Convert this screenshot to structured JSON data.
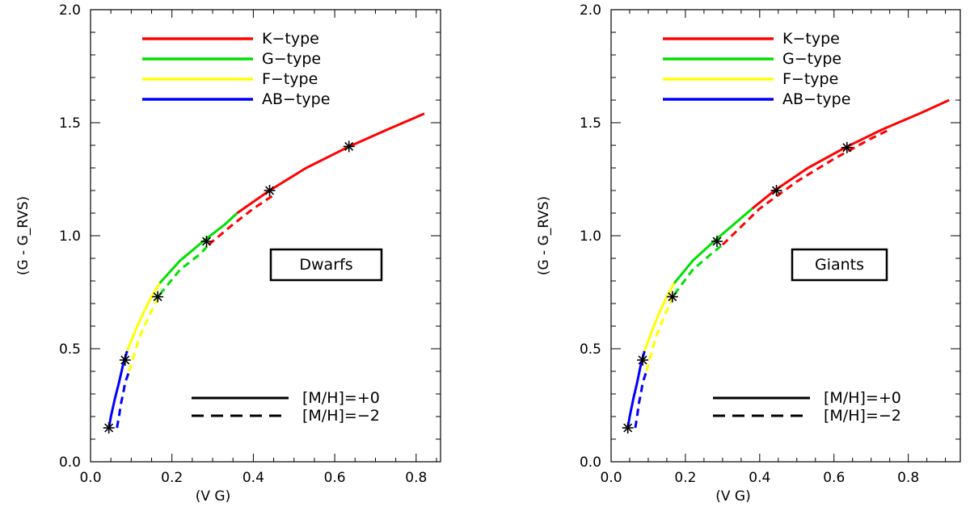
{
  "chart_data": [
    {
      "type": "line",
      "xlabel": "(V    G)",
      "ylabel": "(G - G_RVS)",
      "xlim": [
        0.0,
        0.86
      ],
      "ylim": [
        0.0,
        2.0
      ],
      "xticks": [
        "0.0",
        "0.2",
        "0.4",
        "0.6",
        "0.8"
      ],
      "yticks": [
        "0.0",
        "0.5",
        "1.0",
        "1.5",
        "2.0"
      ],
      "xtick_values": [
        0.0,
        0.2,
        0.4,
        0.6,
        0.8
      ],
      "ytick_values": [
        0.0,
        0.5,
        1.0,
        1.5,
        2.0
      ],
      "annotation": "Dwarfs",
      "color_legend": [
        {
          "label": "K−type",
          "color": "#ff0000"
        },
        {
          "label": "G−type",
          "color": "#00e000"
        },
        {
          "label": "F−type",
          "color": "#ffff00"
        },
        {
          "label": "AB−type",
          "color": "#0000ff"
        }
      ],
      "style_legend": [
        {
          "label": "[M/H]=+0",
          "dash": "solid"
        },
        {
          "label": "[M/H]=−2",
          "dash": "dashed"
        }
      ],
      "series": [
        {
          "name": "[M/H]=+0",
          "dash": "solid",
          "segments": [
            {
              "color": "#0000ff",
              "x": [
                0.045,
                0.05,
                0.06,
                0.07,
                0.08,
                0.09
              ],
              "y": [
                0.15,
                0.2,
                0.28,
                0.35,
                0.43,
                0.49
              ]
            },
            {
              "color": "#ffff00",
              "x": [
                0.09,
                0.11,
                0.13,
                0.15,
                0.17
              ],
              "y": [
                0.49,
                0.58,
                0.66,
                0.73,
                0.79
              ]
            },
            {
              "color": "#00e000",
              "x": [
                0.17,
                0.22,
                0.28,
                0.33,
                0.36
              ],
              "y": [
                0.79,
                0.89,
                0.98,
                1.05,
                1.1
              ]
            },
            {
              "color": "#ff0000",
              "x": [
                0.36,
                0.44,
                0.53,
                0.63,
                0.73,
                0.82
              ],
              "y": [
                1.1,
                1.2,
                1.3,
                1.39,
                1.47,
                1.54
              ]
            }
          ]
        },
        {
          "name": "[M/H]=−2",
          "dash": "dashed",
          "segments": [
            {
              "color": "#0000ff",
              "x": [
                0.065,
                0.07,
                0.075,
                0.08,
                0.085,
                0.095
              ],
              "y": [
                0.15,
                0.2,
                0.26,
                0.3,
                0.35,
                0.4
              ]
            },
            {
              "color": "#ffff00",
              "x": [
                0.095,
                0.12,
                0.145,
                0.17
              ],
              "y": [
                0.4,
                0.55,
                0.65,
                0.74
              ]
            },
            {
              "color": "#00e000",
              "x": [
                0.17,
                0.22,
                0.27,
                0.29
              ],
              "y": [
                0.74,
                0.85,
                0.92,
                0.96
              ]
            },
            {
              "color": "#ff0000",
              "x": [
                0.29,
                0.35,
                0.4,
                0.45
              ],
              "y": [
                0.96,
                1.05,
                1.12,
                1.18
              ]
            }
          ]
        }
      ],
      "markers": {
        "x": [
          0.045,
          0.085,
          0.165,
          0.285,
          0.44,
          0.635
        ],
        "y": [
          0.15,
          0.45,
          0.73,
          0.975,
          1.2,
          1.395
        ]
      }
    },
    {
      "type": "line",
      "xlabel": "(V    G)",
      "ylabel": "(G - G_RVS)",
      "xlim": [
        0.0,
        0.94
      ],
      "ylim": [
        0.0,
        2.0
      ],
      "xticks": [
        "0.0",
        "0.2",
        "0.4",
        "0.6",
        "0.8"
      ],
      "yticks": [
        "0.0",
        "0.5",
        "1.0",
        "1.5",
        "2.0"
      ],
      "xtick_values": [
        0.0,
        0.2,
        0.4,
        0.6,
        0.8
      ],
      "ytick_values": [
        0.0,
        0.5,
        1.0,
        1.5,
        2.0
      ],
      "annotation": "Giants",
      "color_legend": [
        {
          "label": "K−type",
          "color": "#ff0000"
        },
        {
          "label": "G−type",
          "color": "#00e000"
        },
        {
          "label": "F−type",
          "color": "#ffff00"
        },
        {
          "label": "AB−type",
          "color": "#0000ff"
        }
      ],
      "style_legend": [
        {
          "label": "[M/H]=+0",
          "dash": "solid"
        },
        {
          "label": "[M/H]=−2",
          "dash": "dashed"
        }
      ],
      "series": [
        {
          "name": "[M/H]=+0",
          "dash": "solid",
          "segments": [
            {
              "color": "#0000ff",
              "x": [
                0.045,
                0.05,
                0.06,
                0.07,
                0.08,
                0.09
              ],
              "y": [
                0.15,
                0.2,
                0.28,
                0.35,
                0.43,
                0.49
              ]
            },
            {
              "color": "#ffff00",
              "x": [
                0.09,
                0.11,
                0.13,
                0.15,
                0.17
              ],
              "y": [
                0.49,
                0.58,
                0.66,
                0.73,
                0.79
              ]
            },
            {
              "color": "#00e000",
              "x": [
                0.17,
                0.22,
                0.28,
                0.33,
                0.38
              ],
              "y": [
                0.79,
                0.89,
                0.98,
                1.05,
                1.12
              ]
            },
            {
              "color": "#ff0000",
              "x": [
                0.38,
                0.44,
                0.53,
                0.63,
                0.73,
                0.83,
                0.91
              ],
              "y": [
                1.12,
                1.2,
                1.3,
                1.39,
                1.47,
                1.54,
                1.6
              ]
            }
          ]
        },
        {
          "name": "[M/H]=−2",
          "dash": "dashed",
          "segments": [
            {
              "color": "#0000ff",
              "x": [
                0.065,
                0.07,
                0.075,
                0.08,
                0.085,
                0.095
              ],
              "y": [
                0.15,
                0.2,
                0.26,
                0.3,
                0.35,
                0.4
              ]
            },
            {
              "color": "#ffff00",
              "x": [
                0.095,
                0.12,
                0.145,
                0.17
              ],
              "y": [
                0.4,
                0.55,
                0.65,
                0.74
              ]
            },
            {
              "color": "#00e000",
              "x": [
                0.17,
                0.22,
                0.27,
                0.3
              ],
              "y": [
                0.74,
                0.85,
                0.92,
                0.96
              ]
            },
            {
              "color": "#ff0000",
              "x": [
                0.3,
                0.4,
                0.5,
                0.6,
                0.7,
                0.75
              ],
              "y": [
                0.96,
                1.12,
                1.24,
                1.34,
                1.43,
                1.47
              ]
            }
          ]
        }
      ],
      "markers": {
        "x": [
          0.045,
          0.085,
          0.165,
          0.285,
          0.445,
          0.635
        ],
        "y": [
          0.15,
          0.45,
          0.73,
          0.975,
          1.2,
          1.39
        ]
      }
    }
  ]
}
